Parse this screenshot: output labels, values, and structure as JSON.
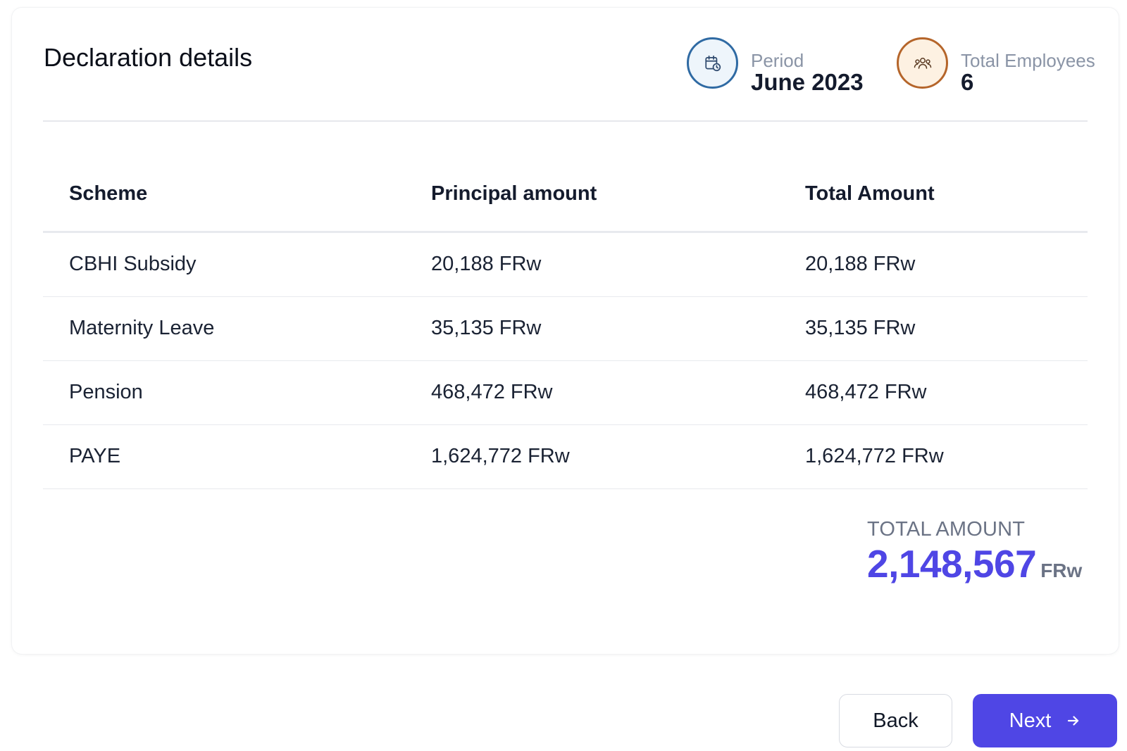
{
  "card": {
    "title": "Declaration details"
  },
  "stats": {
    "period": {
      "label": "Period",
      "value": "June 2023",
      "icon": "calendar-clock-icon",
      "color": "#2f6aa3"
    },
    "employees": {
      "label": "Total Employees",
      "value": "6",
      "icon": "users-icon",
      "color": "#b5652a"
    }
  },
  "table": {
    "headers": [
      "Scheme",
      "Principal amount",
      "Total Amount"
    ],
    "rows": [
      [
        "CBHI Subsidy",
        "20,188 FRw",
        "20,188 FRw"
      ],
      [
        "Maternity Leave",
        "35,135 FRw",
        "35,135 FRw"
      ],
      [
        "Pension",
        "468,472 FRw",
        "468,472 FRw"
      ],
      [
        "PAYE",
        "1,624,772 FRw",
        "1,624,772 FRw"
      ]
    ]
  },
  "total": {
    "label": "TOTAL AMOUNT",
    "value": "2,148,567",
    "currency": "FRw"
  },
  "actions": {
    "back_label": "Back",
    "next_label": "Next"
  },
  "colors": {
    "accent": "#4f46e5"
  }
}
